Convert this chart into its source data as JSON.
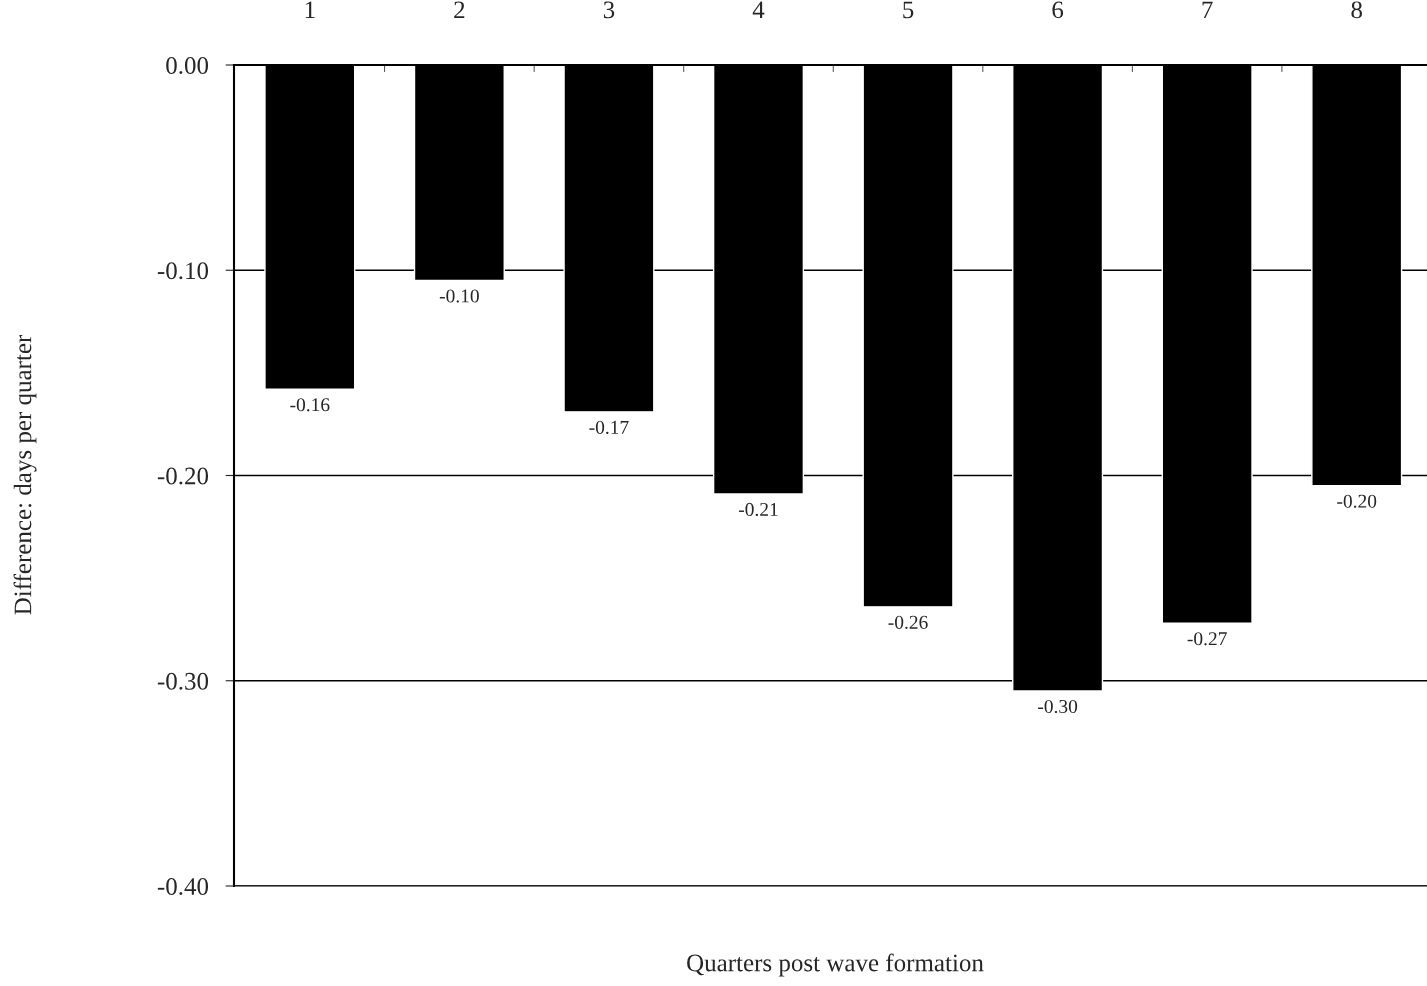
{
  "chart_data": {
    "type": "bar",
    "xlabel": "Quarters post wave formation",
    "ylabel": "Difference: days per quarter",
    "categories": [
      "1",
      "2",
      "3",
      "4",
      "5",
      "6",
      "7",
      "8"
    ],
    "values": [
      -0.158,
      -0.105,
      -0.169,
      -0.209,
      -0.264,
      -0.305,
      -0.272,
      -0.205
    ],
    "value_labels": [
      "-0.16",
      "-0.10",
      "-0.17",
      "-0.21",
      "-0.26",
      "-0.30",
      "-0.27",
      "-0.20"
    ],
    "color": "#000000",
    "ylim": [
      -0.4,
      0
    ],
    "yticks": [
      {
        "value": 0,
        "label": "0.00"
      },
      {
        "value": -0.1,
        "label": "-0.10"
      },
      {
        "value": -0.2,
        "label": "-0.20"
      },
      {
        "value": -0.3,
        "label": "-0.30"
      },
      {
        "value": -0.4,
        "label": "-0.40"
      }
    ],
    "grid": "y",
    "legend": false
  }
}
